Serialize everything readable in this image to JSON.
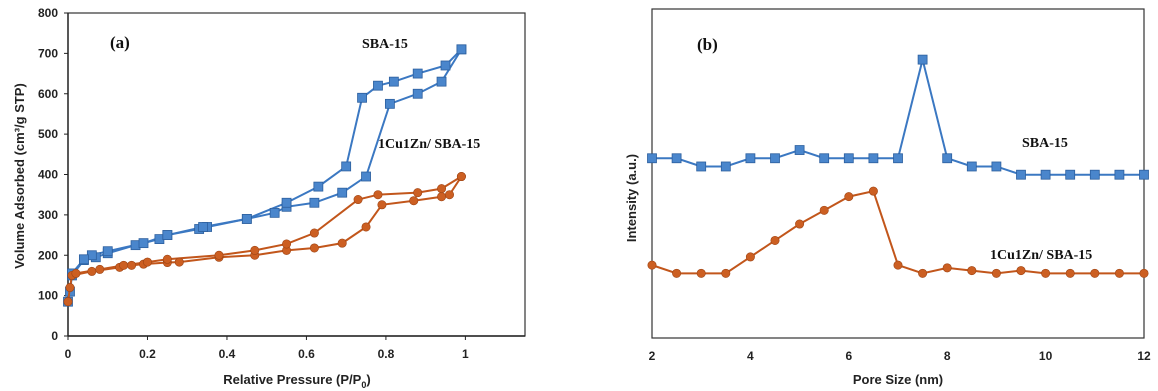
{
  "colors": {
    "blue": "#3b78c2",
    "blue_marker": "#4a86cc",
    "blue_marker_edge": "#2c5f9e",
    "orange": "#c2561b",
    "orange_marker": "#cc5f22"
  },
  "chart_data": [
    {
      "type": "line",
      "panel_label": "(a)",
      "xlabel_main": "Relative Pressure (P/P",
      "xlabel_sub": "0",
      "xlabel_end": ")",
      "ylabel": "Volume Adsorbed (cm³/g STP)",
      "xlim": [
        0,
        1.15
      ],
      "ylim": [
        0,
        800
      ],
      "xticks": [
        0,
        0.2,
        0.4,
        0.6,
        0.8,
        1
      ],
      "xtick_labels": [
        "0",
        "0.2",
        "0.4",
        "0.6",
        "0.8",
        "1"
      ],
      "yticks": [
        0,
        100,
        200,
        300,
        400,
        500,
        600,
        700,
        800
      ],
      "ytick_labels": [
        "0",
        "100",
        "200",
        "300",
        "400",
        "500",
        "600",
        "700",
        "800"
      ],
      "grid": false,
      "series": [
        {
          "name": "SBA-15",
          "marker": "square",
          "color_key": "blue",
          "branches": [
            {
              "x": [
                0.0,
                0.005,
                0.01,
                0.04,
                0.07,
                0.1,
                0.17,
                0.23,
                0.25,
                0.33,
                0.35,
                0.45,
                0.52,
                0.55,
                0.62,
                0.69,
                0.75,
                0.81,
                0.88,
                0.94,
                0.99
              ],
              "y": [
                85,
                110,
                150,
                188,
                195,
                205,
                225,
                240,
                250,
                265,
                270,
                290,
                305,
                320,
                330,
                355,
                395,
                575,
                600,
                630,
                710
              ]
            },
            {
              "x": [
                0.99,
                0.95,
                0.88,
                0.82,
                0.78,
                0.74,
                0.7,
                0.63,
                0.55,
                0.45,
                0.34,
                0.25,
                0.19,
                0.1,
                0.06,
                0.04,
                0.01
              ],
              "y": [
                710,
                670,
                650,
                630,
                620,
                590,
                420,
                370,
                330,
                290,
                270,
                250,
                230,
                210,
                200,
                190,
                155
              ]
            }
          ]
        },
        {
          "name": "1Cu1Zn/ SBA-15",
          "marker": "circle",
          "color_key": "orange",
          "branches": [
            {
              "x": [
                0.0,
                0.005,
                0.01,
                0.06,
                0.13,
                0.16,
                0.19,
                0.25,
                0.28,
                0.38,
                0.47,
                0.55,
                0.62,
                0.69,
                0.75,
                0.79,
                0.87,
                0.94,
                0.96,
                0.99
              ],
              "y": [
                85,
                120,
                150,
                160,
                170,
                175,
                178,
                182,
                183,
                195,
                200,
                212,
                218,
                230,
                270,
                325,
                335,
                345,
                350,
                395
              ]
            },
            {
              "x": [
                0.99,
                0.94,
                0.88,
                0.78,
                0.73,
                0.62,
                0.55,
                0.47,
                0.38,
                0.25,
                0.2,
                0.14,
                0.08,
                0.02
              ],
              "y": [
                395,
                365,
                355,
                350,
                338,
                255,
                228,
                212,
                200,
                190,
                183,
                175,
                165,
                155
              ]
            }
          ]
        }
      ],
      "annotations": {
        "sba15": "SBA-15",
        "cuzn": "1Cu1Zn/ SBA-15"
      }
    },
    {
      "type": "line",
      "panel_label": "(b)",
      "xlabel": "Pore Size (nm)",
      "ylabel": "Intensity (a.u.)",
      "xlim": [
        2,
        12
      ],
      "ylim": [
        0,
        100
      ],
      "xticks": [
        2,
        4,
        6,
        8,
        10,
        12
      ],
      "xtick_labels": [
        "2",
        "4",
        "6",
        "8",
        "10",
        "12"
      ],
      "yticks": [],
      "grid": false,
      "series": [
        {
          "name": "SBA-15",
          "marker": "square",
          "color_key": "blue",
          "x": [
            2,
            2.5,
            3,
            3.5,
            4,
            4.5,
            5,
            5.5,
            6,
            6.5,
            7,
            7.5,
            8,
            8.5,
            9,
            9.5,
            10,
            10.5,
            11,
            11.5,
            12
          ],
          "y": [
            51,
            51,
            48,
            48,
            51,
            51,
            54,
            51,
            51,
            51,
            51,
            87,
            51,
            48,
            48,
            45,
            45,
            45,
            45,
            45,
            45
          ]
        },
        {
          "name": "1Cu1Zn/ SBA-15",
          "marker": "circle",
          "color_key": "orange",
          "x": [
            2,
            2.5,
            3,
            3.5,
            4,
            4.5,
            5,
            5.5,
            6,
            6.5,
            7,
            7.5,
            8,
            8.5,
            9,
            9.5,
            10,
            10.5,
            11,
            11.5,
            12
          ],
          "y": [
            12,
            9,
            9,
            9,
            15,
            21,
            27,
            32,
            37,
            39,
            12,
            9,
            11,
            10,
            9,
            10,
            9,
            9,
            9,
            9,
            9
          ]
        }
      ],
      "annotations": {
        "sba15": "SBA-15",
        "cuzn": "1Cu1Zn/ SBA-15"
      }
    }
  ]
}
